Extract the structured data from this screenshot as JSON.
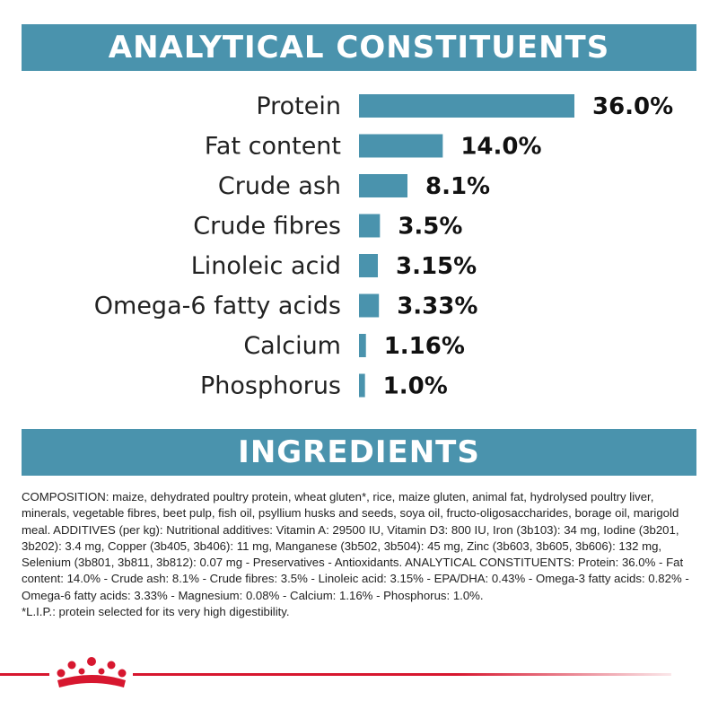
{
  "sections": {
    "analytical_title": "ANALYTICAL CONSTITUENTS",
    "ingredients_title": "INGREDIENTS"
  },
  "chart_data": {
    "type": "bar",
    "orientation": "horizontal",
    "categories": [
      "Protein",
      "Fat content",
      "Crude ash",
      "Crude fibres",
      "Linoleic acid",
      "Omega-6 fatty acids",
      "Calcium",
      "Phosphorus"
    ],
    "values": [
      36.0,
      14.0,
      8.1,
      3.5,
      3.15,
      3.33,
      1.16,
      1.0
    ],
    "value_labels": [
      "36.0%",
      "14.0%",
      "8.1%",
      "3.5%",
      "3.15%",
      "3.33%",
      "1.16%",
      "1.0%"
    ],
    "title": "ANALYTICAL CONSTITUENTS",
    "xlabel": "",
    "ylabel": "",
    "grid": false,
    "bar_color": "#4a93ad"
  },
  "ingredients": {
    "text": "COMPOSITION: maize, dehydrated poultry protein, wheat gluten*, rice, maize gluten, animal fat, hydrolysed poultry liver, minerals, vegetable fibres, beet pulp, fish oil, psyllium husks and seeds, soya oil, fructo-oligosaccharides, borage oil, marigold meal. ADDITIVES (per kg): Nutritional additives: Vitamin A: 29500 IU, Vitamin D3: 800 IU, Iron (3b103): 34 mg, Iodine (3b201, 3b202): 3.4 mg, Copper (3b405, 3b406): 11 mg, Manganese (3b502, 3b504): 45 mg, Zinc (3b603, 3b605, 3b606): 132 mg, Selenium (3b801, 3b811, 3b812): 0.07 mg - Preservatives - Antioxidants. ANALYTICAL CONSTITUENTS: Protein: 36.0% - Fat content: 14.0% - Crude ash: 8.1% - Crude fibres: 3.5% - Linoleic acid: 3.15% - EPA/DHA: 0.43% - Omega-3 fatty acids: 0.82% - Omega-6 fatty acids: 3.33% - Magnesium: 0.08% - Calcium: 1.16% - Phosphorus: 1.0%.",
    "footnote": "*L.I.P.: protein selected for its very high digestibility."
  },
  "colors": {
    "accent": "#4a93ad",
    "brand_red": "#d7172f"
  },
  "footer": {
    "logo_icon": "royal-canin-crown-icon"
  }
}
